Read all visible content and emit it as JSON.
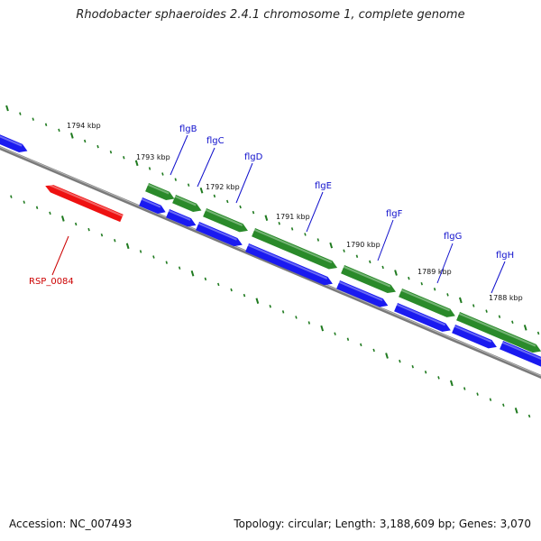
{
  "title": "Rhodobacter sphaeroides 2.4.1 chromosome 1, complete genome",
  "footer": {
    "accession": "Accession: NC_007493",
    "summary": "Topology: circular; Length: 3,188,609 bp; Genes: 3,070"
  },
  "colors": {
    "forward_gene": "#2a8a2a",
    "reverse_gene": "#1a1af0",
    "highlight_gene": "#ee1111",
    "backbone": "#888888",
    "tick": "#1f7a1f",
    "label_blue": "#1010cc",
    "label_red": "#cc0000"
  },
  "kbp_labels": [
    "1794 kbp",
    "1793 kbp",
    "1792 kbp",
    "1791 kbp",
    "1790 kbp",
    "1789 kbp",
    "1788 kbp"
  ],
  "gene_labels": [
    "flgB",
    "flgC",
    "flgD",
    "flgE",
    "flgF",
    "flgG",
    "flgH",
    "RSP_0084"
  ]
}
